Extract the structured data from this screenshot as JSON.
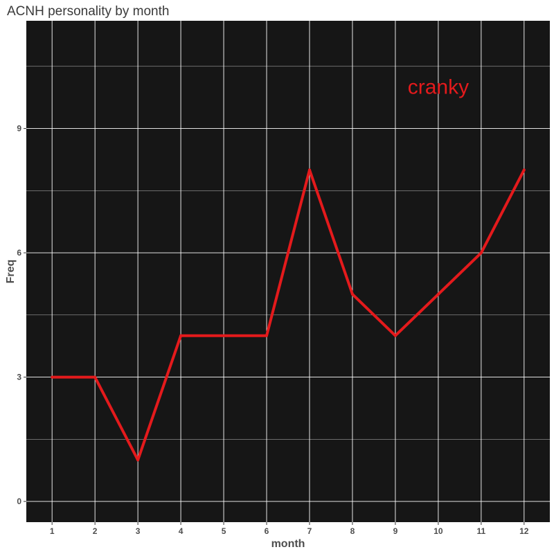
{
  "chart_data": {
    "type": "line",
    "title": "ACNH personality by month",
    "xlabel": "month",
    "ylabel": "Freq",
    "x": [
      1,
      2,
      3,
      4,
      5,
      6,
      7,
      8,
      9,
      10,
      11,
      12
    ],
    "x_ticks": [
      "1",
      "2",
      "3",
      "4",
      "5",
      "6",
      "7",
      "8",
      "9",
      "10",
      "11",
      "12"
    ],
    "y_ticks": [
      "0",
      "3",
      "6",
      "9"
    ],
    "y_tick_values": [
      0,
      3,
      6,
      9
    ],
    "series": [
      {
        "values": [
          3,
          3,
          1,
          4,
          4,
          4,
          8,
          5,
          4,
          5,
          6,
          8
        ],
        "color": "#e41a1c"
      }
    ],
    "annotation": {
      "text": "cranky",
      "x": 10,
      "y": 10,
      "color": "#e41a1c"
    },
    "xlim": [
      0.4,
      12.6
    ],
    "ylim": [
      -0.5,
      11.6
    ],
    "grid": true,
    "panel_background": "#161616",
    "grid_color": "#ffffff"
  }
}
